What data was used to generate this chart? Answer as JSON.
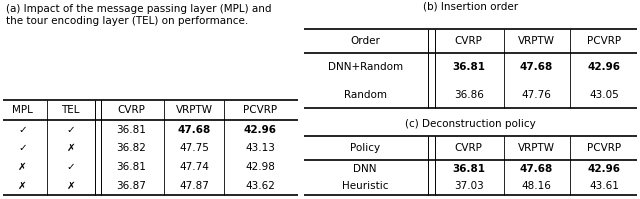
{
  "fig_width": 6.4,
  "fig_height": 1.99,
  "dpi": 100,
  "caption_a": "(a) Impact of the message passing layer (MPL) and\nthe tour encoding layer (TEL) on performance.",
  "caption_b": "(b) Insertion order",
  "caption_c": "(c) Deconstruction policy",
  "table_a": {
    "header": [
      "MPL",
      "TEL",
      "CVRP",
      "VRPTW",
      "PCVRP"
    ],
    "rows": [
      [
        "✓",
        "✓",
        "36.81",
        "47.68",
        "42.96"
      ],
      [
        "✓",
        "✗",
        "36.82",
        "47.75",
        "43.13"
      ],
      [
        "✗",
        "✓",
        "36.81",
        "47.74",
        "42.98"
      ],
      [
        "✗",
        "✗",
        "36.87",
        "47.87",
        "43.62"
      ]
    ],
    "bold_cols_per_row": {
      "0": [
        3,
        4
      ]
    }
  },
  "table_b": {
    "header": [
      "Order",
      "CVRP",
      "VRPTW",
      "PCVRP"
    ],
    "rows": [
      [
        "DNN+Random",
        "36.81",
        "47.68",
        "42.96"
      ],
      [
        "Random",
        "36.86",
        "47.76",
        "43.05"
      ]
    ],
    "bold_cols_per_row": {
      "0": [
        1,
        2,
        3
      ]
    }
  },
  "table_c": {
    "header": [
      "Policy",
      "CVRP",
      "VRPTW",
      "PCVRP"
    ],
    "rows": [
      [
        "DNN",
        "36.81",
        "47.68",
        "42.96"
      ],
      [
        "Heuristic",
        "37.03",
        "48.16",
        "43.61"
      ]
    ],
    "bold_cols_per_row": {
      "0": [
        1,
        2,
        3
      ]
    }
  },
  "font_size": 7.5,
  "header_font_size": 7.5,
  "caption_font_size": 7.5
}
